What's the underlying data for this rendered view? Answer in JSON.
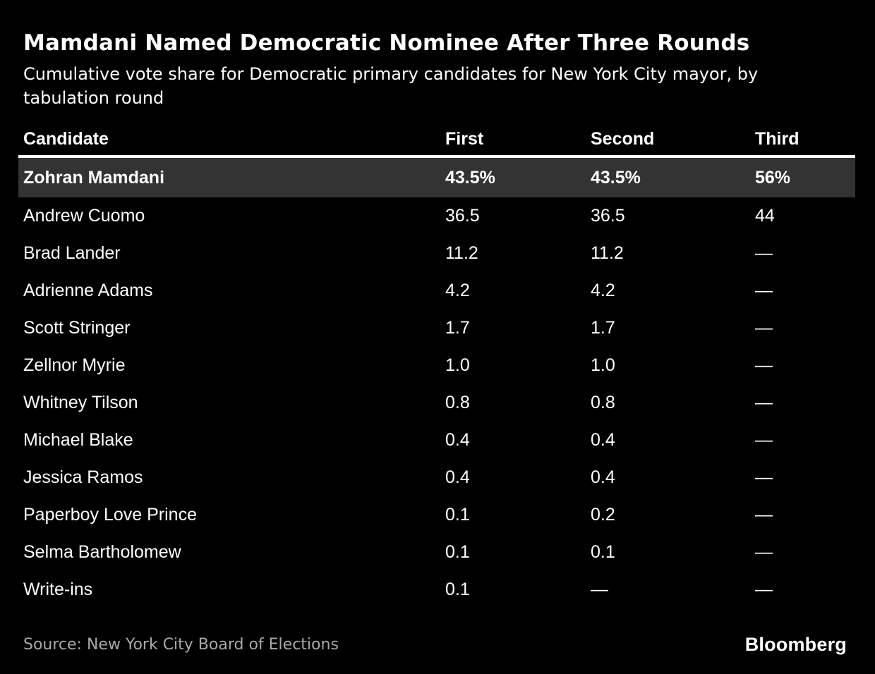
{
  "colors": {
    "background": "#000000",
    "text": "#ffffff",
    "muted_text": "#a8a8a8",
    "highlight_row_bg": "#333333",
    "divider": "#ffffff"
  },
  "header": {
    "title": "Mamdani Named Democratic Nominee After Three Rounds",
    "subtitle": "Cumulative vote share for Democratic primary candidates for New York City mayor, by tabulation round"
  },
  "table": {
    "columns": [
      "Candidate",
      "First",
      "Second",
      "Third"
    ],
    "rows": [
      {
        "name": "Zohran Mamdani",
        "first": "43.5%",
        "second": "43.5%",
        "third": "56%",
        "highlight": true
      },
      {
        "name": "Andrew Cuomo",
        "first": "36.5",
        "second": "36.5",
        "third": "44",
        "highlight": false
      },
      {
        "name": "Brad Lander",
        "first": "11.2",
        "second": "11.2",
        "third": "—",
        "highlight": false
      },
      {
        "name": "Adrienne Adams",
        "first": "4.2",
        "second": "4.2",
        "third": "—",
        "highlight": false
      },
      {
        "name": "Scott Stringer",
        "first": "1.7",
        "second": "1.7",
        "third": "—",
        "highlight": false
      },
      {
        "name": "Zellnor Myrie",
        "first": "1.0",
        "second": "1.0",
        "third": "—",
        "highlight": false
      },
      {
        "name": "Whitney Tilson",
        "first": "0.8",
        "second": "0.8",
        "third": "—",
        "highlight": false
      },
      {
        "name": "Michael Blake",
        "first": "0.4",
        "second": "0.4",
        "third": "—",
        "highlight": false
      },
      {
        "name": "Jessica Ramos",
        "first": "0.4",
        "second": "0.4",
        "third": "—",
        "highlight": false
      },
      {
        "name": "Paperboy Love Prince",
        "first": "0.1",
        "second": "0.2",
        "third": "—",
        "highlight": false
      },
      {
        "name": "Selma Bartholomew",
        "first": "0.1",
        "second": "0.1",
        "third": "—",
        "highlight": false
      },
      {
        "name": "Write-ins",
        "first": "0.1",
        "second": "—",
        "third": "—",
        "highlight": false
      }
    ]
  },
  "footer": {
    "source": "Source: New York City Board of Elections",
    "brand": "Bloomberg"
  },
  "chart_data": {
    "type": "table",
    "title": "Mamdani Named Democratic Nominee After Three Rounds",
    "subtitle": "Cumulative vote share for Democratic primary candidates for New York City mayor, by tabulation round",
    "columns": [
      "Candidate",
      "First",
      "Second",
      "Third"
    ],
    "unit": "percent",
    "rows": [
      {
        "candidate": "Zohran Mamdani",
        "first": 43.5,
        "second": 43.5,
        "third": 56
      },
      {
        "candidate": "Andrew Cuomo",
        "first": 36.5,
        "second": 36.5,
        "third": 44
      },
      {
        "candidate": "Brad Lander",
        "first": 11.2,
        "second": 11.2,
        "third": null
      },
      {
        "candidate": "Adrienne Adams",
        "first": 4.2,
        "second": 4.2,
        "third": null
      },
      {
        "candidate": "Scott Stringer",
        "first": 1.7,
        "second": 1.7,
        "third": null
      },
      {
        "candidate": "Zellnor Myrie",
        "first": 1.0,
        "second": 1.0,
        "third": null
      },
      {
        "candidate": "Whitney Tilson",
        "first": 0.8,
        "second": 0.8,
        "third": null
      },
      {
        "candidate": "Michael Blake",
        "first": 0.4,
        "second": 0.4,
        "third": null
      },
      {
        "candidate": "Jessica Ramos",
        "first": 0.4,
        "second": 0.4,
        "third": null
      },
      {
        "candidate": "Paperboy Love Prince",
        "first": 0.1,
        "second": 0.2,
        "third": null
      },
      {
        "candidate": "Selma Bartholomew",
        "first": 0.1,
        "second": 0.1,
        "third": null
      },
      {
        "candidate": "Write-ins",
        "first": 0.1,
        "second": null,
        "third": null
      }
    ],
    "highlighted_row": "Zohran Mamdani",
    "source": "Source: New York City Board of Elections"
  }
}
